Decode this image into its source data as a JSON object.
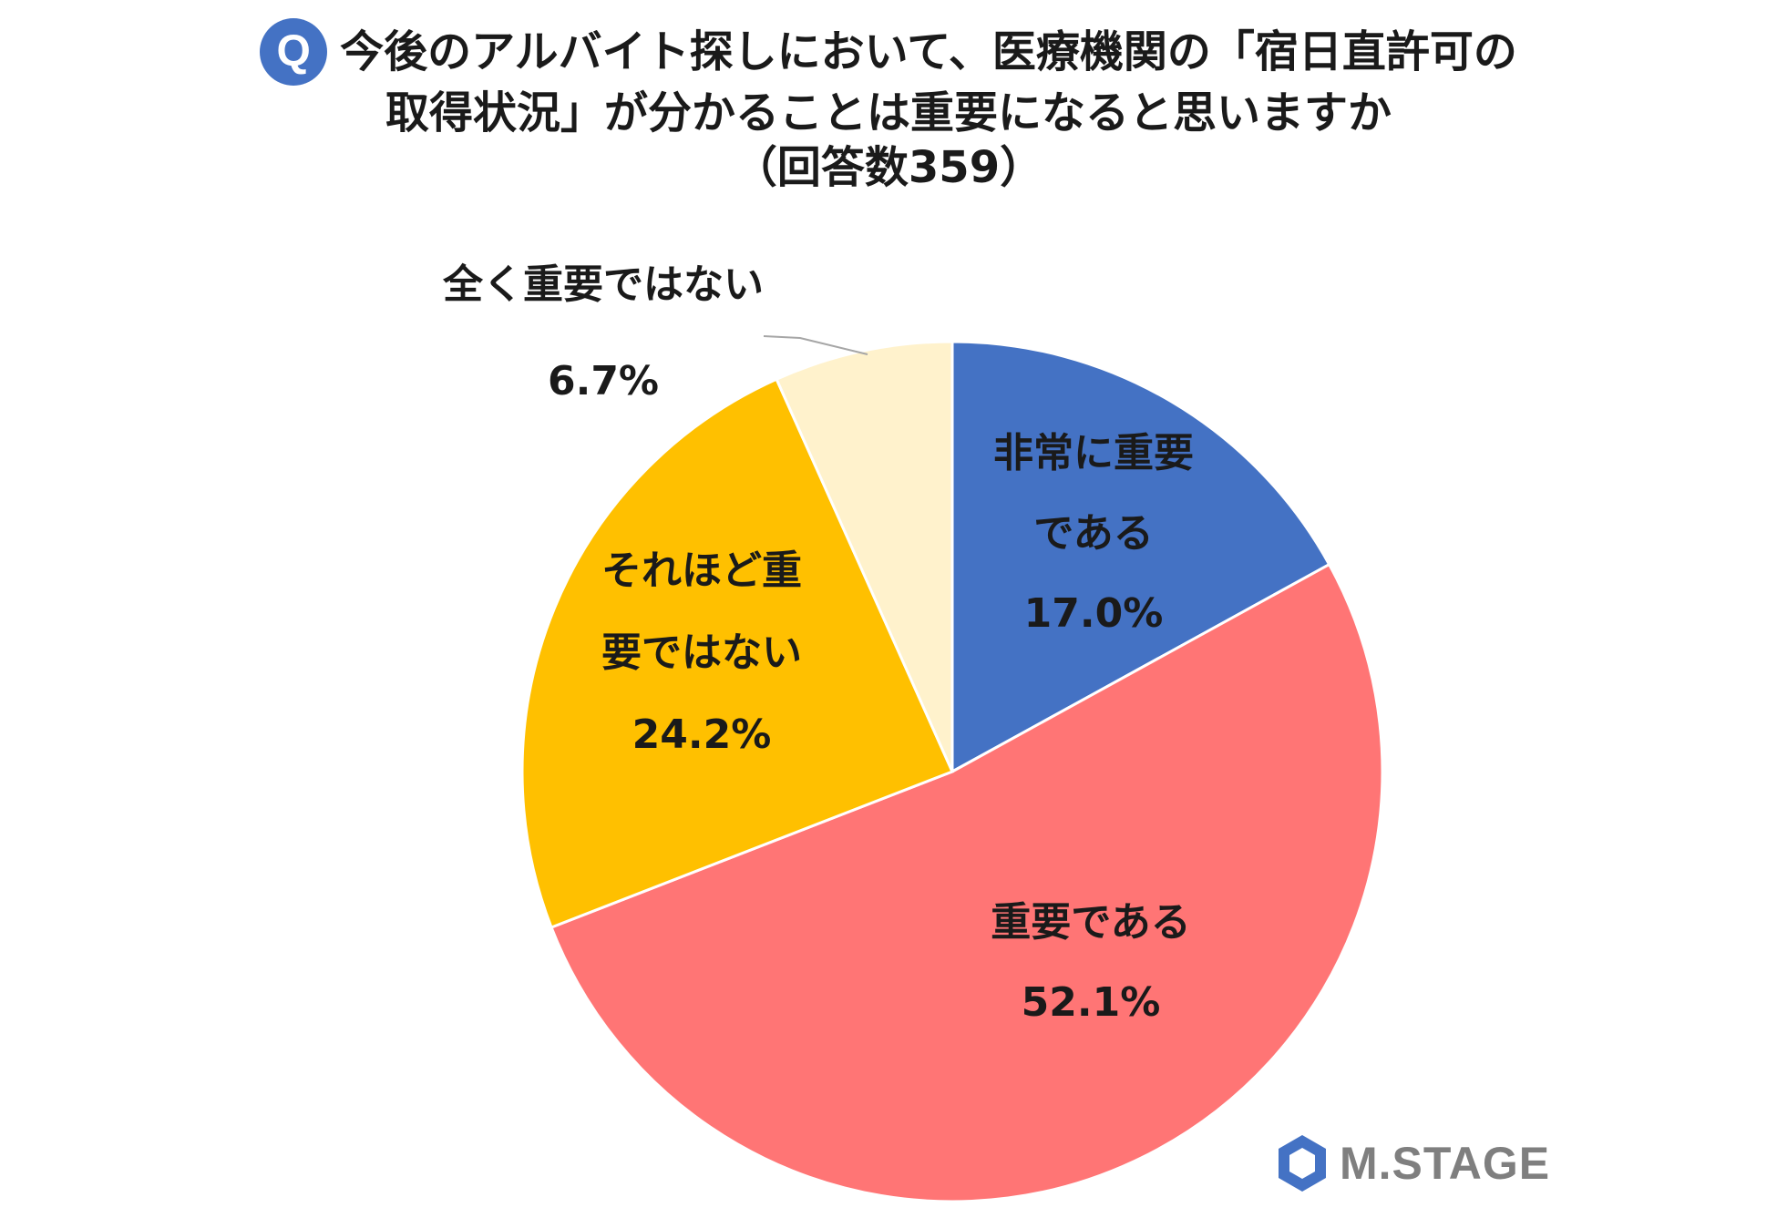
{
  "title": {
    "badge": "Q",
    "line1": "今後のアルバイト探しにおいて、医療機関の「宿日直許可の",
    "line2": "取得状況」が分かることは重要になると思いますか",
    "line3": "（回答数359）"
  },
  "chart_data": {
    "type": "pie",
    "start_angle_deg": 0,
    "direction": "clockwise",
    "slices": [
      {
        "label_lines": [
          "非常に重要",
          "である"
        ],
        "value": 17.0,
        "value_label": "17.0%",
        "color": "#4472c4"
      },
      {
        "label_lines": [
          "重要である"
        ],
        "value": 52.1,
        "value_label": "52.1%",
        "color": "#ff7575"
      },
      {
        "label_lines": [
          "それほど重",
          "要ではない"
        ],
        "value": 24.2,
        "value_label": "24.2%",
        "color": "#ffc000"
      },
      {
        "label_lines": [
          "全く重要ではない"
        ],
        "value": 6.7,
        "value_label": "6.7%",
        "color": "#fff2cc"
      }
    ]
  },
  "logo": {
    "text": "M.STAGE",
    "icon": "m-stage-logo-icon",
    "color": "#4472c4"
  }
}
